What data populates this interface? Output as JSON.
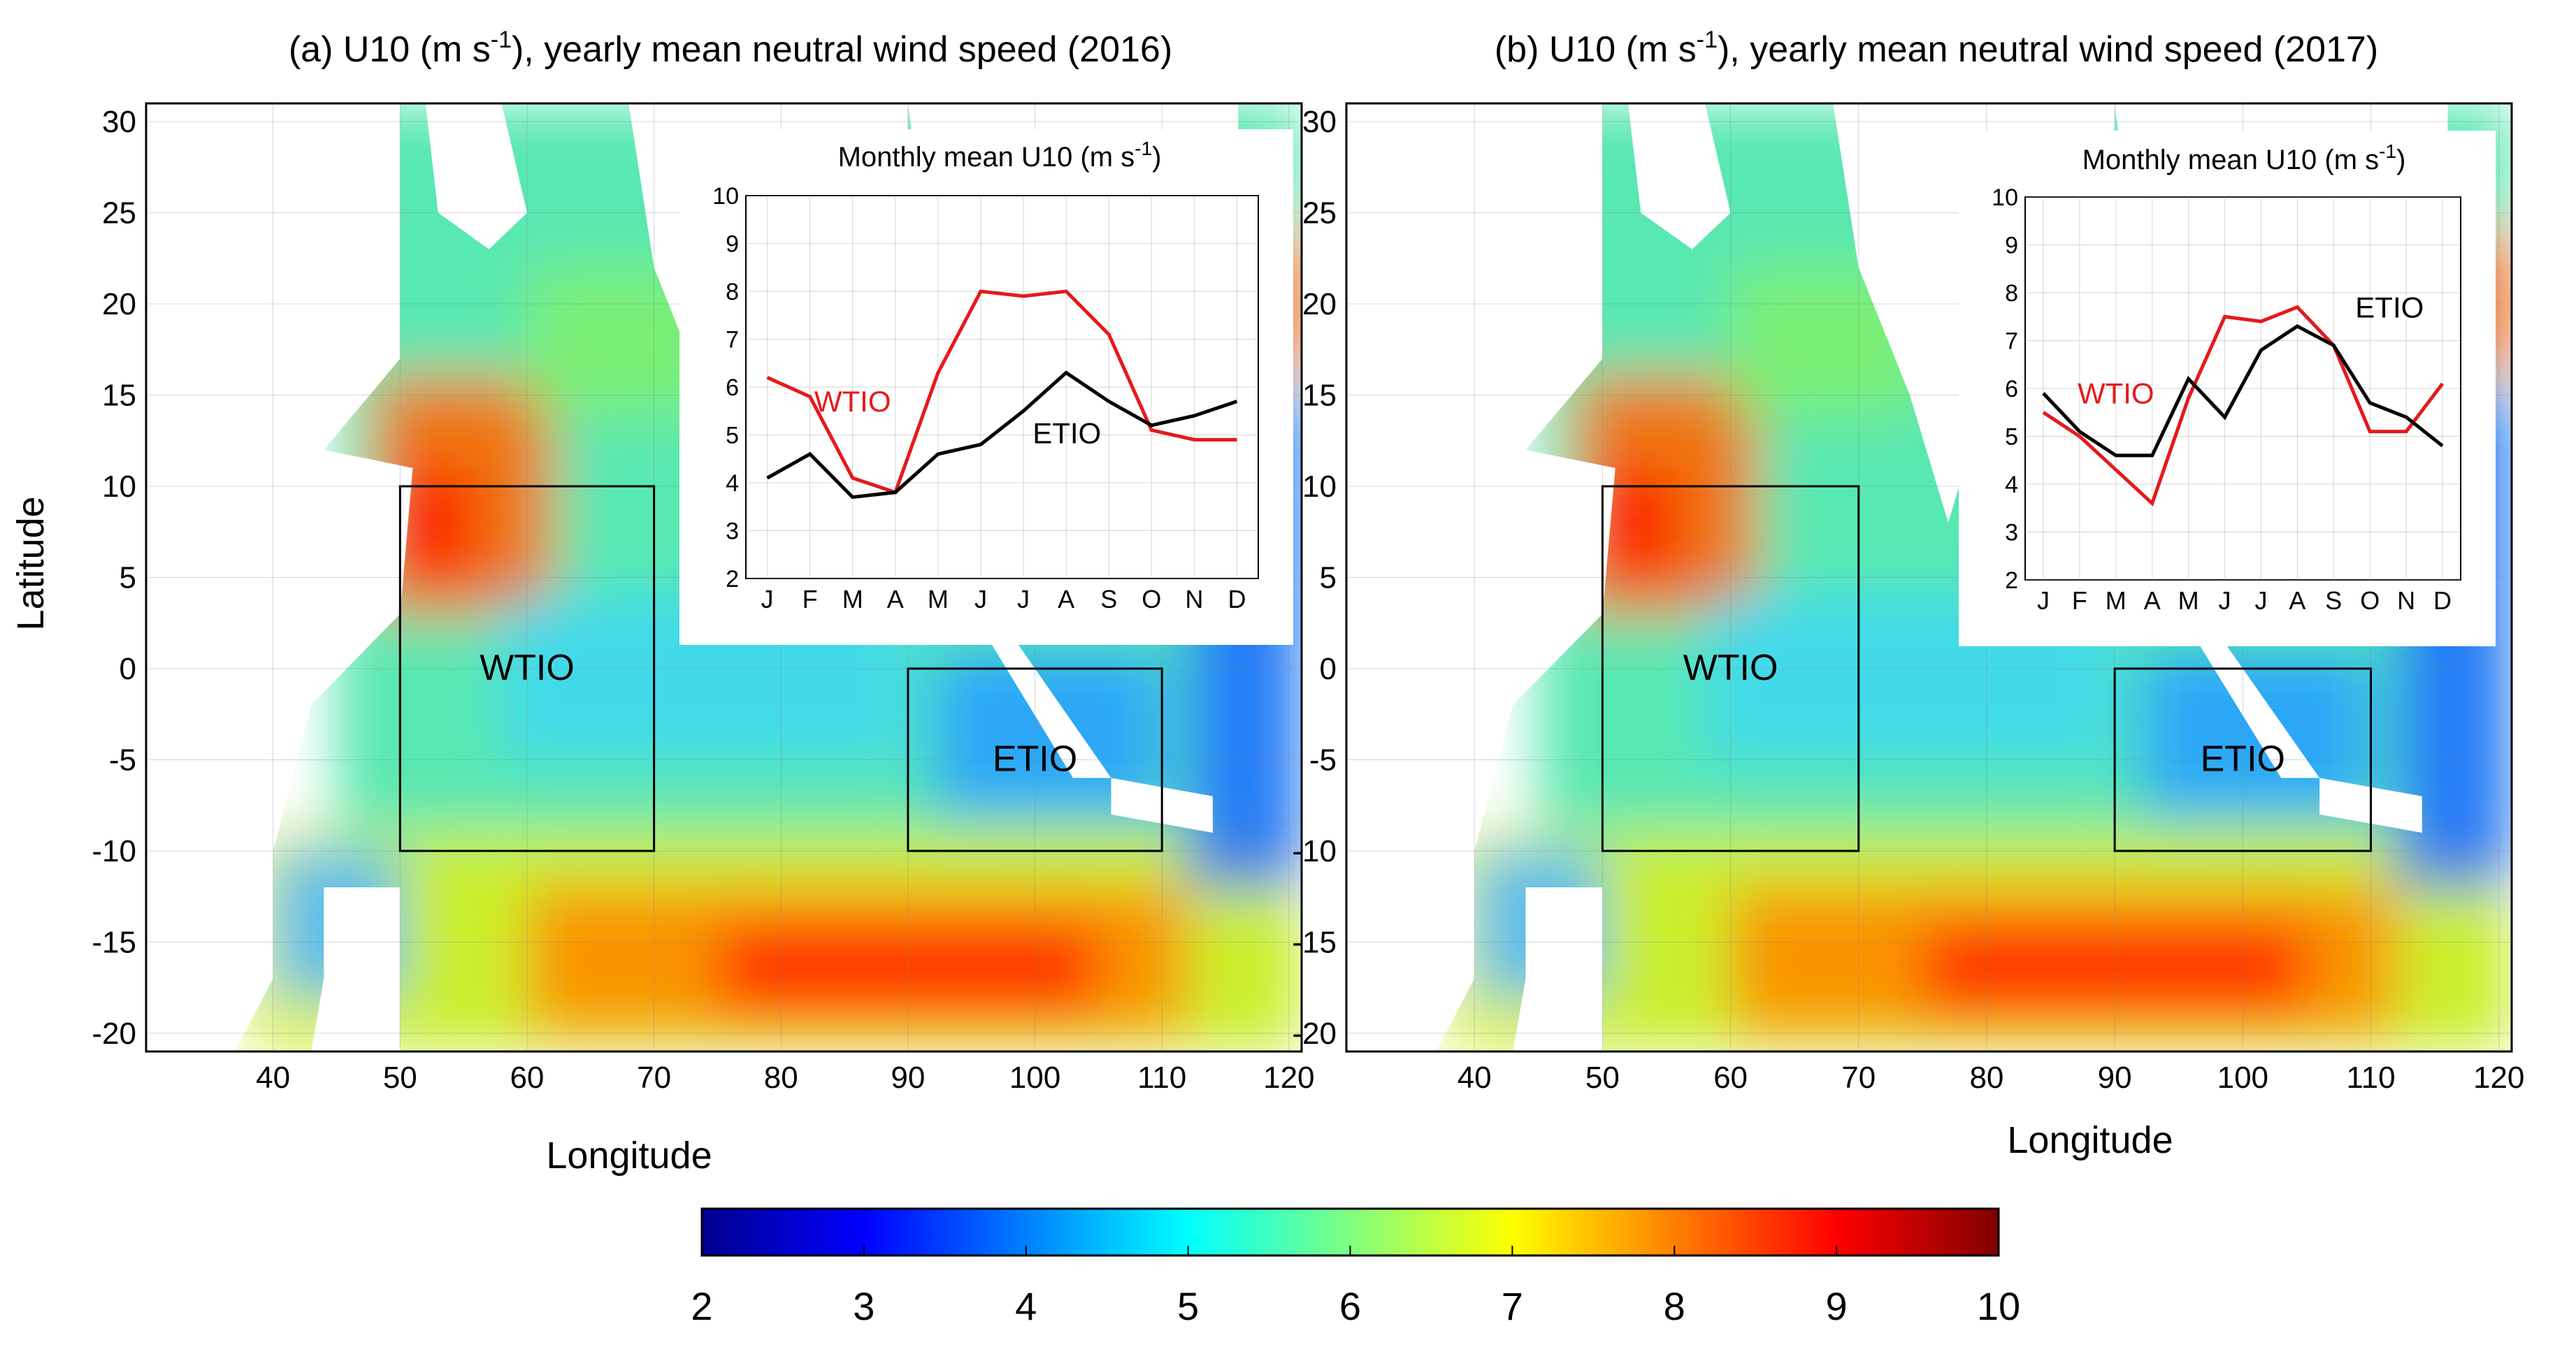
{
  "figure": {
    "colorbar": {
      "min": 2,
      "max": 10,
      "ticks": [
        2,
        3,
        4,
        5,
        6,
        7,
        8,
        9,
        10
      ],
      "tick_labels": [
        "2",
        "3",
        "4",
        "5",
        "6",
        "7",
        "8",
        "9",
        "10"
      ],
      "colormap": "jet",
      "colors": [
        "#00008f",
        "#0000ff",
        "#00ffff",
        "#ffff00",
        "#ff0000",
        "#800000"
      ]
    }
  },
  "chart_data": [
    {
      "type": "heatmap",
      "panel": "a",
      "title": "(a) U10 (m s",
      "title_sup": "-1",
      "title_tail": "), yearly mean neutral wind speed (2016)",
      "xlabel": "Longitude",
      "ylabel": "Latitude",
      "xlim": [
        30,
        121
      ],
      "ylim": [
        -21,
        31
      ],
      "xticks": [
        40,
        50,
        60,
        70,
        80,
        90,
        100,
        110,
        120
      ],
      "yticks": [
        30,
        25,
        20,
        15,
        10,
        5,
        0,
        -5,
        -10,
        -15,
        -20
      ],
      "boxes": [
        {
          "name": "WTIO",
          "lon": [
            50,
            70
          ],
          "lat": [
            -10,
            10
          ]
        },
        {
          "name": "ETIO",
          "lon": [
            90,
            110
          ],
          "lat": [
            -10,
            0
          ]
        }
      ],
      "inset": {
        "type": "line",
        "title": "Monthly mean U10 (m s",
        "title_sup": "-1",
        "title_tail": ")",
        "categories": [
          "J",
          "F",
          "M",
          "A",
          "M",
          "J",
          "J",
          "A",
          "S",
          "O",
          "N",
          "D"
        ],
        "ylim": [
          2,
          10
        ],
        "yticks": [
          2,
          3,
          4,
          5,
          6,
          7,
          8,
          9,
          10
        ],
        "series": [
          {
            "name": "WTIO",
            "color": "#e41a1c",
            "values": [
              6.2,
              5.8,
              4.1,
              3.8,
              6.3,
              8.0,
              7.9,
              8.0,
              7.1,
              5.1,
              4.9,
              4.9
            ]
          },
          {
            "name": "ETIO",
            "color": "#000000",
            "values": [
              4.1,
              4.6,
              3.7,
              3.8,
              4.6,
              4.8,
              5.5,
              6.3,
              5.7,
              5.2,
              5.4,
              5.7
            ]
          }
        ],
        "labels": [
          {
            "series": "WTIO",
            "text": "WTIO"
          },
          {
            "series": "ETIO",
            "text": "ETIO"
          }
        ]
      }
    },
    {
      "type": "heatmap",
      "panel": "b",
      "title": "(b) U10 (m s",
      "title_sup": "-1",
      "title_tail": "), yearly mean neutral wind speed (2017)",
      "xlabel": "Longitude",
      "ylabel": "",
      "xlim": [
        30,
        121
      ],
      "ylim": [
        -21,
        31
      ],
      "xticks": [
        40,
        50,
        60,
        70,
        80,
        90,
        100,
        110,
        120
      ],
      "yticks": [
        30,
        25,
        20,
        15,
        10,
        5,
        0,
        -5,
        -10,
        -15,
        -20
      ],
      "boxes": [
        {
          "name": "WTIO",
          "lon": [
            50,
            70
          ],
          "lat": [
            -10,
            10
          ]
        },
        {
          "name": "ETIO",
          "lon": [
            90,
            110
          ],
          "lat": [
            -10,
            0
          ]
        }
      ],
      "inset": {
        "type": "line",
        "title": "Monthly mean U10 (m s",
        "title_sup": "-1",
        "title_tail": ")",
        "categories": [
          "J",
          "F",
          "M",
          "A",
          "M",
          "J",
          "J",
          "A",
          "S",
          "O",
          "N",
          "D"
        ],
        "ylim": [
          2,
          10
        ],
        "yticks": [
          2,
          3,
          4,
          5,
          6,
          7,
          8,
          9,
          10
        ],
        "series": [
          {
            "name": "WTIO",
            "color": "#e41a1c",
            "values": [
              5.5,
              5.0,
              4.3,
              3.6,
              5.8,
              7.5,
              7.4,
              7.7,
              6.9,
              5.1,
              5.1,
              6.1
            ]
          },
          {
            "name": "ETIO",
            "color": "#000000",
            "values": [
              5.9,
              5.1,
              4.6,
              4.6,
              6.2,
              5.4,
              6.8,
              7.3,
              6.9,
              5.7,
              5.4,
              4.8
            ]
          }
        ],
        "labels": [
          {
            "series": "WTIO",
            "text": "WTIO"
          },
          {
            "series": "ETIO",
            "text": "ETIO"
          }
        ]
      }
    }
  ]
}
